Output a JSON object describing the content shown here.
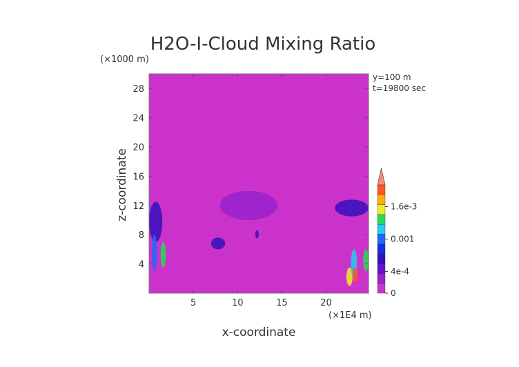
{
  "chart_data": {
    "type": "heatmap",
    "title": "H2O-I-Cloud Mixing Ratio",
    "xlabel": "x-coordinate",
    "ylabel": "z-coordinate",
    "x_unit": "(×1E4 m)",
    "y_unit": "(×1000 m)",
    "xlim": [
      0,
      24.8
    ],
    "ylim": [
      0,
      30
    ],
    "x_ticks": [
      5,
      10,
      15,
      20
    ],
    "y_ticks": [
      4,
      8,
      12,
      16,
      20,
      24,
      28
    ],
    "annotations": [
      "y=100 m",
      "t=19800 sec"
    ],
    "colorbar": {
      "labels": [
        {
          "text": "1.6e-3",
          "value": 0.0016
        },
        {
          "text": "0.001",
          "value": 0.001
        },
        {
          "text": "4e-4",
          "value": 0.0004
        },
        {
          "text": "0",
          "value": 0
        }
      ],
      "colors": [
        "#cc33cc",
        "#9922cc",
        "#6611cc",
        "#3311bb",
        "#1133dd",
        "#2266ff",
        "#22ccee",
        "#22dd55",
        "#eeee22",
        "#ffaa11",
        "#ff5522",
        "#ff8877"
      ]
    },
    "background_color": "#cc33cc",
    "regions": [
      {
        "x0": 8.0,
        "x1": 14.5,
        "z0": 10.0,
        "z1": 14.0,
        "level": 1
      },
      {
        "x0": 0.0,
        "x1": 1.5,
        "z0": 7.0,
        "z1": 12.5,
        "level": 3
      },
      {
        "x0": 21.0,
        "x1": 24.8,
        "z0": 10.5,
        "z1": 12.8,
        "level": 3
      },
      {
        "x0": 7.0,
        "x1": 8.6,
        "z0": 6.0,
        "z1": 7.6,
        "level": 3
      },
      {
        "x0": 12.0,
        "x1": 12.4,
        "z0": 7.5,
        "z1": 8.6,
        "level": 3
      },
      {
        "x0": 0.3,
        "x1": 0.9,
        "z0": 3.0,
        "z1": 8.0,
        "level": 5
      },
      {
        "x0": 1.3,
        "x1": 1.9,
        "z0": 3.5,
        "z1": 7.0,
        "level": 7
      },
      {
        "x0": 22.3,
        "x1": 23.0,
        "z0": 1.0,
        "z1": 3.5,
        "level": 8
      },
      {
        "x0": 22.8,
        "x1": 23.5,
        "z0": 2.0,
        "z1": 6.0,
        "level": 6
      },
      {
        "x0": 23.0,
        "x1": 23.6,
        "z0": 1.5,
        "z1": 3.5,
        "level": 10
      },
      {
        "x0": 24.2,
        "x1": 24.8,
        "z0": 3.0,
        "z1": 6.0,
        "level": 7
      }
    ]
  }
}
